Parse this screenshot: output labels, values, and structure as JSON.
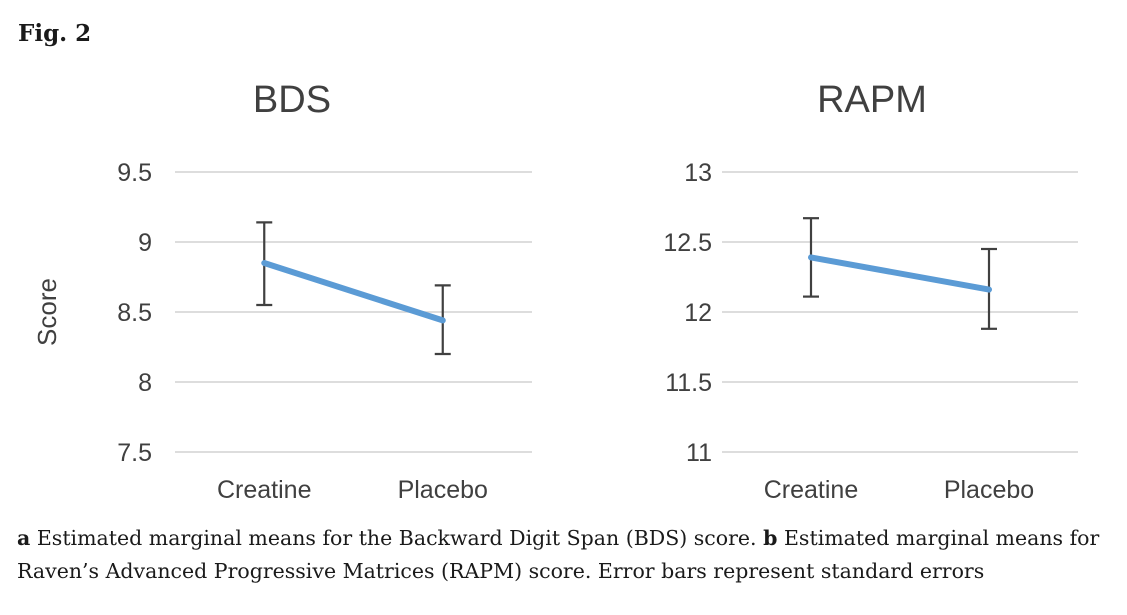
{
  "figure_label": "Fig. 2",
  "caption": {
    "part_a_label": "a",
    "part_a_text": "Estimated marginal means for the Backward Digit Span (BDS) score.",
    "part_b_label": "b",
    "part_b_text": "Estimated marginal means for Raven’s Advanced Progressive Matrices (RAPM) score. Error bars represent standard errors"
  },
  "colors": {
    "series_line": "#5b9bd5",
    "grid_line": "#d2d2d2",
    "axis_text": "#404040",
    "title_text": "#404040",
    "error_bar": "#404040",
    "caption_text": "#1a1a1a",
    "background": "#ffffff"
  },
  "chart_data": [
    {
      "type": "line",
      "title": "BDS",
      "ylabel": "Score",
      "xlabel": "",
      "categories": [
        "Creatine",
        "Placebo"
      ],
      "series": [
        {
          "values": [
            8.85,
            8.44
          ],
          "error_low": [
            8.55,
            8.2
          ],
          "error_high": [
            9.14,
            8.69
          ]
        }
      ],
      "ylim": [
        7.5,
        9.5
      ],
      "ytick_values": [
        7.5,
        8,
        8.5,
        9,
        9.5
      ],
      "ytick_labels": [
        "7.5",
        "8",
        "8.5",
        "9",
        "9.5"
      ],
      "grid": true,
      "legend": "none"
    },
    {
      "type": "line",
      "title": "RAPM",
      "ylabel": "",
      "xlabel": "",
      "categories": [
        "Creatine",
        "Placebo"
      ],
      "series": [
        {
          "values": [
            12.39,
            12.16
          ],
          "error_low": [
            12.11,
            11.88
          ],
          "error_high": [
            12.67,
            12.45
          ]
        }
      ],
      "ylim": [
        11,
        13
      ],
      "ytick_values": [
        11,
        11.5,
        12,
        12.5,
        13
      ],
      "ytick_labels": [
        "11",
        "11.5",
        "12",
        "12.5",
        "13"
      ],
      "grid": true,
      "legend": "none"
    }
  ]
}
